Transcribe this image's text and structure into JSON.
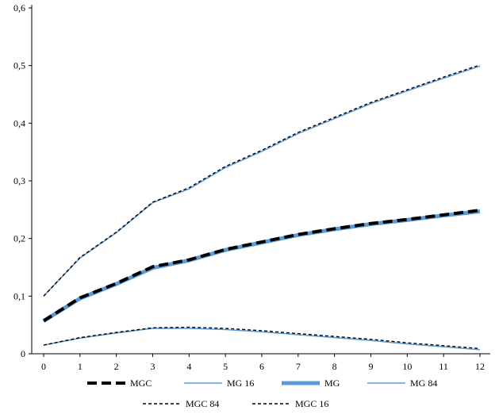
{
  "chart_data": {
    "type": "line",
    "x": [
      0,
      1,
      2,
      3,
      4,
      5,
      6,
      7,
      8,
      9,
      10,
      11,
      12
    ],
    "xticks": [
      "0",
      "1",
      "2",
      "3",
      "4",
      "5",
      "6",
      "7",
      "8",
      "9",
      "10",
      "11",
      "12"
    ],
    "yticks": [
      "0",
      "0,1",
      "0,2",
      "0,3",
      "0,4",
      "0,5",
      "0,6"
    ],
    "ylim": [
      0,
      0.6
    ],
    "xlim": [
      0,
      12
    ],
    "grid": false,
    "legend_position": "bottom",
    "series": [
      {
        "name": "MGC",
        "color": "#000000",
        "style": "thick-dash",
        "values": [
          0.057,
          0.097,
          0.122,
          0.151,
          0.163,
          0.181,
          0.194,
          0.207,
          0.217,
          0.226,
          0.233,
          0.241,
          0.249
        ]
      },
      {
        "name": "MG 16",
        "color": "#5b9bd5",
        "style": "thin-solid",
        "values": [
          0.015,
          0.027,
          0.036,
          0.044,
          0.044,
          0.042,
          0.038,
          0.033,
          0.028,
          0.023,
          0.017,
          0.012,
          0.007
        ]
      },
      {
        "name": "MG",
        "color": "#5b9bd5",
        "style": "thick-solid",
        "values": [
          0.057,
          0.096,
          0.121,
          0.149,
          0.162,
          0.18,
          0.193,
          0.206,
          0.216,
          0.225,
          0.232,
          0.24,
          0.247
        ]
      },
      {
        "name": "MG 84",
        "color": "#5b9bd5",
        "style": "thin-solid",
        "values": [
          0.1,
          0.166,
          0.21,
          0.262,
          0.286,
          0.323,
          0.351,
          0.382,
          0.408,
          0.434,
          0.456,
          0.478,
          0.499
        ]
      },
      {
        "name": "MGC 84",
        "color": "#000000",
        "style": "thin-dash",
        "values": [
          0.1,
          0.167,
          0.211,
          0.263,
          0.288,
          0.325,
          0.353,
          0.384,
          0.41,
          0.436,
          0.458,
          0.48,
          0.501
        ]
      },
      {
        "name": "MGC 16",
        "color": "#000000",
        "style": "thin-dash",
        "values": [
          0.015,
          0.028,
          0.037,
          0.045,
          0.046,
          0.044,
          0.04,
          0.035,
          0.03,
          0.025,
          0.019,
          0.014,
          0.009
        ]
      }
    ]
  }
}
